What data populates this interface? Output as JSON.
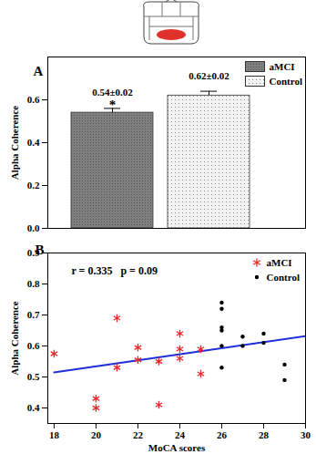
{
  "chart_data": [
    {
      "type": "bar",
      "panel": "A",
      "categories": [
        "aMCI",
        "Control"
      ],
      "values": [
        0.54,
        0.62
      ],
      "errors": [
        0.02,
        0.02
      ],
      "value_labels": [
        "0.54±0.02",
        "0.62±0.02"
      ],
      "data_labels": true,
      "colors": [
        "#7f7f7f",
        "#f4f4f4"
      ],
      "ylabel": "Alpha Coherence",
      "ylim": [
        0,
        0.8
      ],
      "yticks": [
        {
          "value": 0,
          "label": "0.0"
        },
        0.2,
        0.4,
        0.6
      ],
      "legend": "top-right",
      "annotations": [
        {
          "text": "*",
          "category": "aMCI"
        }
      ]
    },
    {
      "type": "scatter",
      "panel": "B",
      "xlabel": "MoCA scores",
      "ylabel": "Alpha Coherence",
      "xlim": [
        17.7,
        30
      ],
      "xticks": [
        18,
        20,
        22,
        24,
        26,
        28,
        30
      ],
      "ylim": [
        0.35,
        0.9
      ],
      "yticks": [
        0.4,
        0.5,
        0.6,
        0.7,
        0.8,
        0.9
      ],
      "legend": "top-right",
      "series": [
        {
          "name": "aMCI",
          "color": "#e8262a",
          "marker": "asterisk",
          "x": [
            18,
            20,
            20,
            21,
            21,
            22,
            22,
            23,
            23,
            24,
            24,
            24,
            25,
            25
          ],
          "values": [
            0.575,
            0.43,
            0.4,
            0.69,
            0.53,
            0.595,
            0.555,
            0.55,
            0.41,
            0.64,
            0.59,
            0.56,
            0.59,
            0.51
          ]
        },
        {
          "name": "Control",
          "color": "#000000",
          "marker": "circle",
          "x": [
            26,
            26,
            26,
            26,
            26,
            26,
            27,
            27,
            28,
            28,
            29,
            29
          ],
          "values": [
            0.74,
            0.72,
            0.66,
            0.65,
            0.6,
            0.53,
            0.63,
            0.6,
            0.64,
            0.61,
            0.54,
            0.49
          ]
        }
      ],
      "fit": {
        "x": [
          18,
          30
        ],
        "values": [
          0.515,
          0.632
        ],
        "color": "#1f2ed6"
      },
      "annotations": [
        {
          "text": "r = 0.335   p = 0.09"
        }
      ]
    }
  ]
}
